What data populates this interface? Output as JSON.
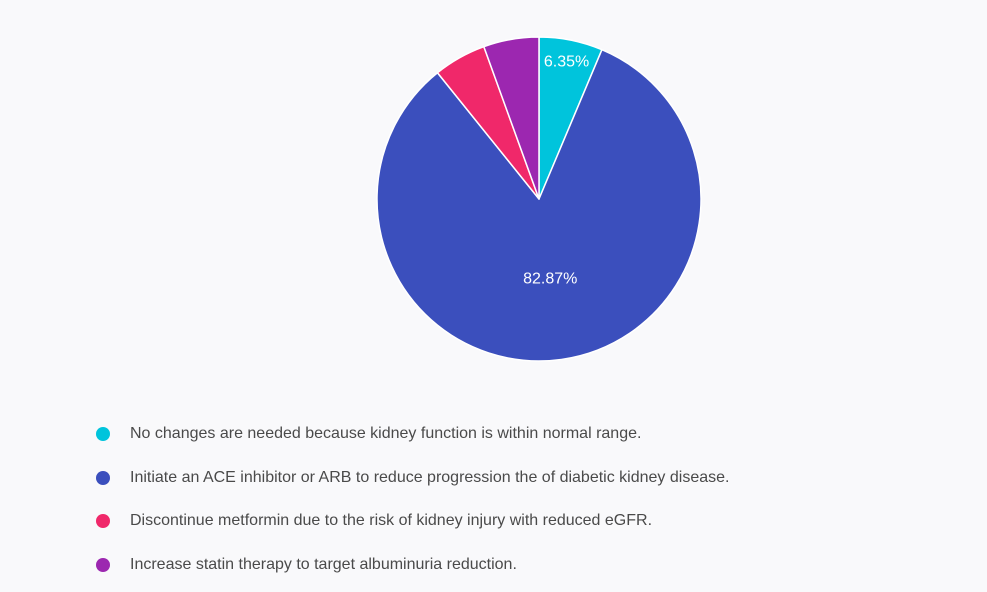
{
  "chart_data": {
    "type": "pie",
    "title": "",
    "categories": [
      "No changes are needed because kidney function is within normal range.",
      "Initiate an ACE inhibitor or ARB to reduce progression the of diabetic kidney disease.",
      "Discontinue metformin due to the risk of kidney injury with reduced eGFR.",
      "Increase statin therapy to target albuminuria reduction."
    ],
    "values": [
      6.35,
      82.87,
      5.25,
      5.53
    ],
    "data_labels": [
      "6.35%",
      "82.87%",
      "",
      ""
    ],
    "colors": [
      "#00c4dc",
      "#3b4fbd",
      "#f0286a",
      "#9c27b0"
    ],
    "legend_position": "bottom-left"
  }
}
